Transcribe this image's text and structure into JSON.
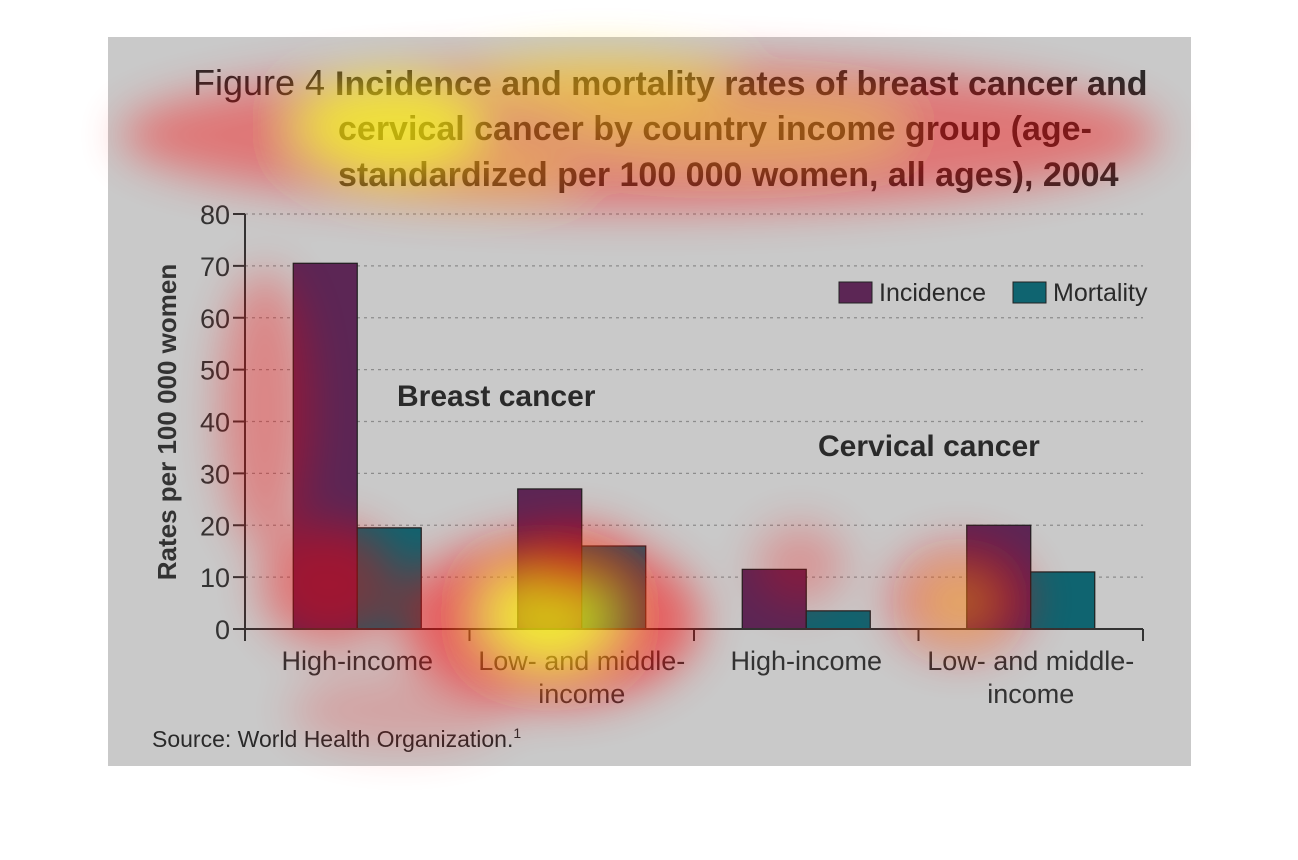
{
  "figure": {
    "label": "Figure 4",
    "title_lines": [
      "Incidence and mortality rates of breast cancer and",
      "cervical cancer by country income group (age-",
      "standardized per 100 000 women, all ages), 2004"
    ],
    "source_text": "Source: World Health Organization.",
    "source_superscript": "1"
  },
  "chart_data": {
    "type": "bar",
    "ylabel": "Rates per 100 000 women",
    "ylim": [
      0,
      80
    ],
    "yticks": [
      "0",
      "10",
      "20",
      "30",
      "40",
      "50",
      "60",
      "70",
      "80"
    ],
    "grid": true,
    "legend_position": "top-right",
    "groups": [
      {
        "name": "Breast cancer",
        "categories": [
          [
            "High-income"
          ],
          [
            "Low- and middle-",
            "income"
          ]
        ]
      },
      {
        "name": "Cervical cancer",
        "categories": [
          [
            "High-income"
          ],
          [
            "Low- and middle-",
            "income"
          ]
        ]
      }
    ],
    "series": [
      {
        "name": "Incidence",
        "color": "#5c2655",
        "values": [
          70.5,
          27,
          11.5,
          20
        ]
      },
      {
        "name": "Mortality",
        "color": "#0f6470",
        "values": [
          19.5,
          16,
          3.5,
          11
        ]
      }
    ]
  },
  "overlay": {
    "type": "attention heatmap",
    "colors": [
      "#ff0000",
      "#ffff00"
    ]
  }
}
